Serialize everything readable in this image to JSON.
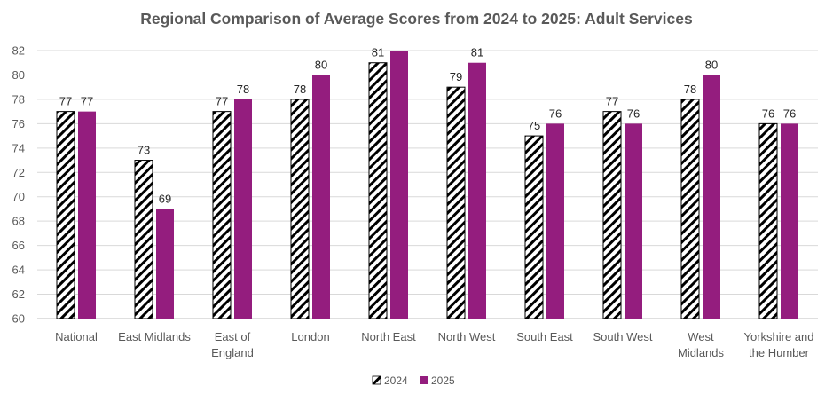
{
  "chart_data": {
    "type": "bar",
    "title": "Regional Comparison  of Average Scores from 2024 to 2025: Adult Services",
    "xlabel": "",
    "ylabel": "",
    "ylim": [
      60,
      82
    ],
    "ytick_step": 2,
    "grid": true,
    "legend_position": "bottom",
    "categories": [
      "National",
      "East Midlands",
      "East of England",
      "London",
      "North East",
      "North West",
      "South East",
      "South West",
      "West Midlands",
      "Yorkshire and the Humber"
    ],
    "category_label_lines": [
      [
        "National"
      ],
      [
        "East Midlands"
      ],
      [
        "East of",
        "England"
      ],
      [
        "London"
      ],
      [
        "North East"
      ],
      [
        "North West"
      ],
      [
        "South East"
      ],
      [
        "South West"
      ],
      [
        "West",
        "Midlands"
      ],
      [
        "Yorkshire and",
        "the Humber"
      ]
    ],
    "series": [
      {
        "name": "2024",
        "values": [
          77,
          73,
          77,
          78,
          81,
          79,
          75,
          77,
          78,
          76
        ],
        "fill": "pattern-diagonal-hatch",
        "color": "#000000"
      },
      {
        "name": "2025",
        "values": [
          77,
          69,
          78,
          80,
          82,
          81,
          76,
          76,
          80,
          76
        ],
        "fill": "solid",
        "color": "#941D7E"
      }
    ],
    "data_labels": [
      [
        "77",
        "73",
        "77",
        "78",
        "81",
        "79",
        "75",
        "77",
        "78",
        "76"
      ],
      [
        "77",
        "69",
        "78",
        "80",
        "",
        "81",
        "76",
        "76",
        "80",
        "76"
      ]
    ]
  }
}
